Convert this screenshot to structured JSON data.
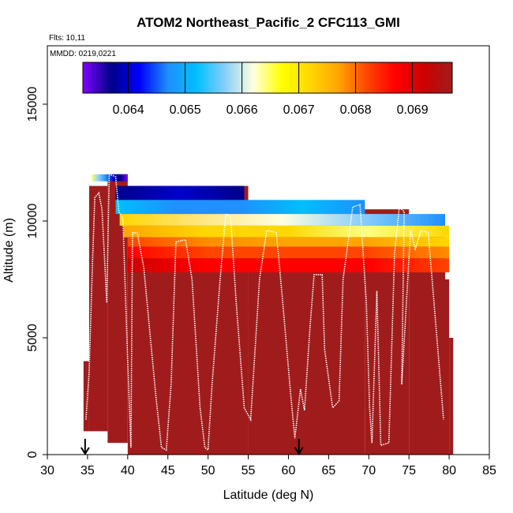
{
  "chart_data": {
    "type": "heatmap",
    "title": "ATOM2 Northeast_Pacific_2 CFC113_GMI",
    "annotations": {
      "flights": "Flts: 10,11",
      "dates": "MMDD: 0219,0221"
    },
    "xlabel": "Latitude (deg N)",
    "ylabel": "Altitude (m)",
    "xlim": [
      30,
      85
    ],
    "ylim": [
      0,
      17500
    ],
    "xticks": [
      30,
      35,
      40,
      45,
      50,
      55,
      60,
      65,
      70,
      75,
      80,
      85
    ],
    "yticks": [
      0,
      5000,
      10000,
      15000
    ],
    "colorbar": {
      "range": [
        0.0632,
        0.0697
      ],
      "ticks": [
        0.064,
        0.065,
        0.066,
        0.067,
        0.068,
        0.069
      ],
      "tick_labels": [
        "0.064",
        "0.065",
        "0.066",
        "0.067",
        "0.068",
        "0.069"
      ],
      "colors": [
        "#7f00ff",
        "#00008b",
        "#0000ff",
        "#1e90ff",
        "#00bfff",
        "#87cefa",
        "#ffffe0",
        "#ffff00",
        "#ffd700",
        "#ffa500",
        "#ff4500",
        "#ff0000",
        "#cd0000",
        "#a01c1c"
      ]
    },
    "flight_arrows_lat": [
      34.7,
      61.3
    ],
    "columns": [
      {
        "lat0": 34.5,
        "lat1": 35.2,
        "bot": 1000,
        "top": 4000
      },
      {
        "lat0": 35.2,
        "lat1": 37.5,
        "bot": 1000,
        "top": 11500
      },
      {
        "lat0": 37.5,
        "lat1": 40.0,
        "bot": 500,
        "top": 12000
      },
      {
        "lat0": 40.0,
        "lat1": 55.0,
        "bot": 0,
        "top": 11500
      },
      {
        "lat0": 55.0,
        "lat1": 69.5,
        "bot": 0,
        "top": 10800
      },
      {
        "lat0": 69.5,
        "lat1": 75.0,
        "bot": 0,
        "top": 10500
      },
      {
        "lat0": 75.0,
        "lat1": 79.5,
        "bot": 0,
        "top": 10000
      },
      {
        "lat0": 79.5,
        "lat1": 80.0,
        "bot": 0,
        "top": 7500
      },
      {
        "lat0": 80.0,
        "lat1": 80.5,
        "bot": 0,
        "top": 5000
      }
    ],
    "profile_bands": [
      {
        "lat0": 35.5,
        "lat1": 40.0,
        "bot": 11700,
        "top": 12000,
        "colors": [
          "#ffff80",
          "#87cefa",
          "#1e90ff",
          "#0000cd",
          "#00008b",
          "#7f00ff"
        ]
      },
      {
        "lat0": 38.5,
        "lat1": 54.5,
        "bot": 10900,
        "top": 11500,
        "colors": [
          "#00008b",
          "#0000cd",
          "#00008b"
        ]
      },
      {
        "lat0": 38.5,
        "lat1": 69.5,
        "bot": 10300,
        "top": 10900,
        "colors": [
          "#00bfff",
          "#1e90ff",
          "#1e90ff",
          "#00bfff",
          "#1e90ff"
        ]
      },
      {
        "lat0": 39.0,
        "lat1": 79.5,
        "bot": 9800,
        "top": 10300,
        "colors": [
          "#ffd700",
          "#ffe680",
          "#ffffe0",
          "#87cefa",
          "#1e90ff"
        ]
      },
      {
        "lat0": 39.5,
        "lat1": 80.0,
        "bot": 9300,
        "top": 9800,
        "colors": [
          "#ffa500",
          "#ffd700",
          "#ffd700",
          "#ffff80",
          "#ffd700"
        ]
      },
      {
        "lat0": 40.0,
        "lat1": 80.0,
        "bot": 8900,
        "top": 9300,
        "colors": [
          "#ff4500",
          "#ff8c00",
          "#ffa500",
          "#ffa500",
          "#ffd700"
        ]
      },
      {
        "lat0": 40.0,
        "lat1": 80.0,
        "bot": 8400,
        "top": 8900,
        "colors": [
          "#ff0000",
          "#ff4500",
          "#ff4500",
          "#ff4500",
          "#ff8c00"
        ]
      },
      {
        "lat0": 40.0,
        "lat1": 80.0,
        "bot": 7800,
        "top": 8400,
        "colors": [
          "#cd0000",
          "#ff0000",
          "#ff0000",
          "#ff0000",
          "#ff4500"
        ]
      }
    ],
    "flight_path": [
      [
        34.8,
        1500
      ],
      [
        35.2,
        3500
      ],
      [
        35.6,
        8000
      ],
      [
        35.9,
        11000
      ],
      [
        36.4,
        11200
      ],
      [
        36.8,
        10500
      ],
      [
        37.1,
        8500
      ],
      [
        37.4,
        6500
      ],
      [
        37.7,
        12000
      ],
      [
        38.5,
        11900
      ],
      [
        38.9,
        10400
      ],
      [
        39.4,
        10100
      ],
      [
        40.0,
        4000
      ],
      [
        40.4,
        300
      ],
      [
        40.6,
        9500
      ],
      [
        41.2,
        9500
      ],
      [
        42.0,
        8000
      ],
      [
        43.5,
        2500
      ],
      [
        44.2,
        300
      ],
      [
        44.8,
        200
      ],
      [
        45.4,
        3000
      ],
      [
        46.0,
        9100
      ],
      [
        47.2,
        9200
      ],
      [
        48.0,
        7500
      ],
      [
        49.0,
        2000
      ],
      [
        49.6,
        300
      ],
      [
        50.0,
        200
      ],
      [
        50.5,
        3000
      ],
      [
        51.5,
        7500
      ],
      [
        52.2,
        10300
      ],
      [
        52.8,
        10200
      ],
      [
        53.5,
        6500
      ],
      [
        54.5,
        2000
      ],
      [
        55.3,
        1500
      ],
      [
        56.4,
        7500
      ],
      [
        57.3,
        9600
      ],
      [
        58.5,
        9500
      ],
      [
        59.3,
        6500
      ],
      [
        60.3,
        2500
      ],
      [
        60.8,
        700
      ],
      [
        61.5,
        2800
      ],
      [
        62.0,
        1900
      ],
      [
        62.7,
        5500
      ],
      [
        63.2,
        7700
      ],
      [
        64.2,
        7700
      ],
      [
        64.5,
        4500
      ],
      [
        65.5,
        2000
      ],
      [
        66.3,
        2300
      ],
      [
        66.8,
        7500
      ],
      [
        68.0,
        10600
      ],
      [
        68.9,
        10700
      ],
      [
        69.7,
        6500
      ],
      [
        70.1,
        2000
      ],
      [
        70.4,
        500
      ],
      [
        71.0,
        7000
      ],
      [
        71.5,
        400
      ],
      [
        72.5,
        500
      ],
      [
        73.2,
        8600
      ],
      [
        73.8,
        10600
      ],
      [
        74.4,
        10400
      ],
      [
        74.1,
        3000
      ],
      [
        75.2,
        9600
      ],
      [
        75.8,
        8800
      ],
      [
        76.5,
        9600
      ],
      [
        77.4,
        9500
      ],
      [
        78.0,
        7000
      ],
      [
        79.3,
        1500
      ]
    ]
  }
}
